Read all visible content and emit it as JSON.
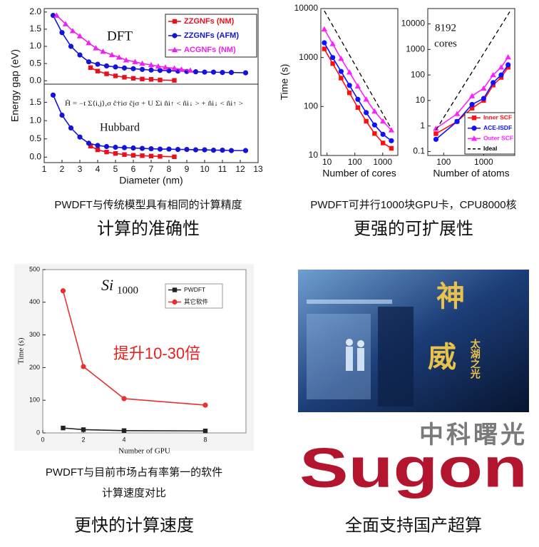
{
  "chart_data": [
    {
      "type": "line",
      "ylabel": "Energy gap (eV)",
      "xlim": [
        1,
        13
      ],
      "ylim": [
        -0.1,
        2.1
      ],
      "yticks": [
        {
          "value": 0,
          "label": "0.0"
        },
        {
          "value": 0.5,
          "label": "0.5"
        },
        {
          "value": 1,
          "label": "1.0"
        },
        {
          "value": 1.5,
          "label": "1.5"
        },
        {
          "value": 2,
          "label": "2.0"
        }
      ],
      "annotations": [
        "DFT"
      ],
      "legend": "upper right",
      "series": [
        {
          "name": "ZZGNFs (NM)",
          "color": "#e8101c",
          "marker": "square",
          "x": [
            3.6,
            4.0,
            4.5,
            5.0,
            5.5,
            6.0,
            6.5,
            7.0,
            7.5,
            8.3
          ],
          "values": [
            0.38,
            0.28,
            0.2,
            0.14,
            0.1,
            0.07,
            0.05,
            0.04,
            0.02,
            0.01
          ]
        },
        {
          "name": "ZZGNFs (AFM)",
          "color": "#1414d8",
          "marker": "circle",
          "x": [
            1.5,
            2,
            2.5,
            3,
            3.5,
            4,
            4.5,
            5,
            5.5,
            6,
            6.5,
            7,
            7.5,
            8,
            8.5,
            9,
            9.5,
            10,
            10.5,
            11,
            11.5,
            12.3
          ],
          "values": [
            1.9,
            1.4,
            1.0,
            0.75,
            0.55,
            0.48,
            0.43,
            0.4,
            0.37,
            0.35,
            0.33,
            0.31,
            0.3,
            0.29,
            0.28,
            0.27,
            0.26,
            0.25,
            0.25,
            0.24,
            0.24,
            0.23
          ]
        },
        {
          "name": "ACGNFs (NM)",
          "color": "#f020f0",
          "marker": "triangle",
          "x": [
            1.7,
            2.2,
            2.6,
            3.0,
            3.5,
            3.9,
            4.3,
            4.8,
            5.2,
            5.6,
            6.1,
            6.5,
            7.0,
            7.4,
            7.8,
            8.3,
            8.7,
            9.2
          ],
          "values": [
            1.9,
            1.65,
            1.45,
            1.3,
            1.1,
            0.95,
            0.85,
            0.75,
            0.68,
            0.6,
            0.55,
            0.5,
            0.46,
            0.42,
            0.39,
            0.36,
            0.33,
            0.3
          ]
        }
      ]
    },
    {
      "type": "line",
      "xlabel": "Diameter (nm)",
      "xlim": [
        1,
        13
      ],
      "ylim": [
        -0.15,
        2.0
      ],
      "xticks": [
        1,
        2,
        3,
        4,
        5,
        6,
        7,
        8,
        9,
        10,
        11,
        12,
        13
      ],
      "yticks": [
        {
          "value": 0,
          "label": "0.0"
        },
        {
          "value": 0.5,
          "label": "0.5"
        },
        {
          "value": 1,
          "label": "1.0"
        },
        {
          "value": 1.5,
          "label": "1.5"
        }
      ],
      "annotations": [
        "Hubbard",
        "Ĥ = −t Σ⟨i,j⟩,σ ĉ†iσ ĉjσ + U Σi n̂i↑ < n̂i↓ > + n̂i↓ < n̂i↑ >"
      ],
      "series": [
        {
          "color": "#e8101c",
          "marker": "square",
          "x": [
            3.6,
            4.0,
            4.5,
            5.0,
            5.5,
            6.0,
            6.5,
            7.0,
            7.5,
            8.3
          ],
          "values": [
            0.3,
            0.2,
            0.14,
            0.1,
            0.07,
            0.05,
            0.04,
            0.03,
            0.02,
            0.01
          ]
        },
        {
          "color": "#1414d8",
          "marker": "circle",
          "x": [
            1.5,
            2,
            2.5,
            3,
            3.5,
            4,
            4.5,
            5,
            5.5,
            6,
            6.5,
            7,
            7.5,
            8,
            8.5,
            9,
            9.5,
            10,
            10.5,
            11,
            11.5,
            12.3
          ],
          "values": [
            1.7,
            1.15,
            0.8,
            0.55,
            0.38,
            0.32,
            0.29,
            0.27,
            0.26,
            0.25,
            0.24,
            0.23,
            0.22,
            0.22,
            0.21,
            0.21,
            0.2,
            0.2,
            0.19,
            0.19,
            0.18,
            0.18
          ]
        }
      ]
    },
    {
      "type": "line",
      "xlabel": "Number of cores",
      "ylabel": "Time (s)",
      "xscale": "log",
      "yscale": "log",
      "xlim": [
        6,
        3500
      ],
      "ylim": [
        10,
        10000
      ],
      "xticks": [
        10,
        100,
        1000
      ],
      "yticks": [
        10,
        100,
        1000,
        10000
      ],
      "series": [
        {
          "color": "#ff1010",
          "marker": "square",
          "x": [
            8,
            16,
            32,
            64,
            128,
            256,
            512,
            1024,
            2048
          ],
          "values": [
            1500,
            750,
            380,
            190,
            95,
            50,
            28,
            18,
            14
          ]
        },
        {
          "color": "#1010ff",
          "marker": "circle",
          "x": [
            8,
            16,
            32,
            64,
            128,
            256,
            512,
            1024,
            2048
          ],
          "values": [
            2000,
            1000,
            520,
            270,
            140,
            75,
            42,
            27,
            20
          ]
        },
        {
          "color": "#ff20ff",
          "marker": "triangle",
          "x": [
            8,
            16,
            32,
            64,
            128,
            256,
            512,
            1024,
            2048
          ],
          "values": [
            3800,
            1900,
            950,
            500,
            260,
            140,
            80,
            50,
            33
          ]
        },
        {
          "color": "#000000",
          "dash": true,
          "x": [
            8,
            2048
          ],
          "values": [
            9000,
            35
          ]
        }
      ]
    },
    {
      "type": "line",
      "xlabel": "Number of atoms",
      "xscale": "log",
      "yscale": "log",
      "xlim": [
        40,
        6000
      ],
      "ylim": [
        0.07,
        40000
      ],
      "xticks": [
        100,
        1000
      ],
      "yticks": [
        0.1,
        1,
        10,
        100,
        1000,
        10000
      ],
      "annotations": [
        "8192",
        "cores"
      ],
      "legend": "lower right",
      "series": [
        {
          "name": "Inner SCF",
          "color": "#ff1010",
          "marker": "square",
          "x": [
            64,
            216,
            512,
            1000,
            1728,
            2744,
            4096
          ],
          "values": [
            0.5,
            1.5,
            5,
            10,
            40,
            80,
            200
          ]
        },
        {
          "name": "ACE-ISDF",
          "color": "#1010ff",
          "marker": "circle",
          "x": [
            64,
            216,
            512,
            1000,
            1728,
            2744,
            4096
          ],
          "values": [
            0.3,
            1.5,
            7,
            12,
            50,
            100,
            250
          ]
        },
        {
          "name": "Outer SCF",
          "color": "#ff20ff",
          "marker": "triangle",
          "x": [
            64,
            216,
            512,
            1000,
            1728,
            2744,
            4096
          ],
          "values": [
            0.8,
            3,
            15,
            30,
            100,
            200,
            500
          ]
        },
        {
          "name": "Ideal",
          "color": "#000000",
          "dash": true,
          "x": [
            64,
            4500
          ],
          "values": [
            0.7,
            30000
          ]
        }
      ]
    },
    {
      "type": "line",
      "title": "Si",
      "title_sub": "1000",
      "xlabel": "Number of GPU",
      "ylabel": "Time (s)",
      "xlim": [
        0,
        10
      ],
      "ylim": [
        0,
        500
      ],
      "xticks": [
        0,
        2,
        4,
        8
      ],
      "yticks": [
        0,
        100,
        200,
        300,
        400,
        500
      ],
      "annotations": [
        "提升10-30倍"
      ],
      "legend": "upper right",
      "series": [
        {
          "name": "PWDFT",
          "color": "#222222",
          "marker": "square",
          "x": [
            1,
            2,
            4,
            8
          ],
          "values": [
            15,
            10,
            7,
            6
          ]
        },
        {
          "name": "其它软件",
          "color": "#e83030",
          "marker": "circle",
          "x": [
            1,
            2,
            4,
            8
          ],
          "values": [
            435,
            203,
            105,
            85
          ]
        }
      ]
    }
  ],
  "captions": [
    "PWDFT与传统模型具有相同的计算精度",
    "计算的准确性",
    "PWDFT可并行1000块GPU卡，CPU8000核",
    "更强的可扩展性",
    "PWDFT与目前市场占有率第一的软件",
    "计算速度对比",
    "更快的计算速度",
    "全面支持国产超算"
  ],
  "photo": {
    "chars": [
      "神",
      "威"
    ],
    "subtitle": "太湖之光"
  },
  "logo": {
    "chinese": "中科曙光",
    "english": "Sugon"
  }
}
